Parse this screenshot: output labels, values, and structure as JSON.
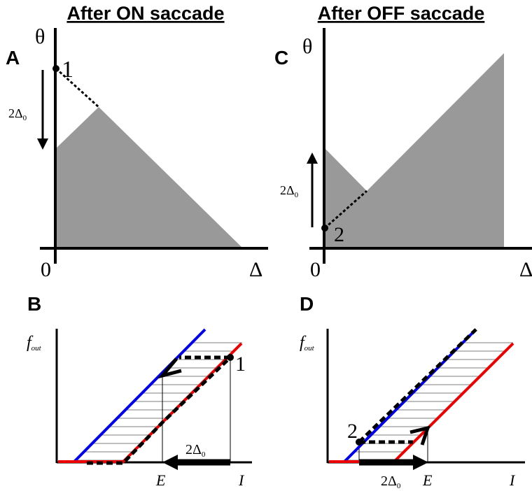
{
  "headers": {
    "left": "After ON saccade",
    "right": "After OFF saccade"
  },
  "panels": {
    "A": {
      "label": "A",
      "y_label": "θ",
      "x_label": "Δ",
      "origin_label": "0",
      "point_label": "1",
      "shift_base": "2Δ",
      "shift_sub": "0"
    },
    "B": {
      "label": "B",
      "y_label_base": "f",
      "y_label_sub": "out",
      "x_label": "I",
      "e_label": "E",
      "point_label": "1",
      "shift_base": "2Δ",
      "shift_sub": "0"
    },
    "C": {
      "label": "C",
      "y_label": "θ",
      "x_label": "Δ",
      "origin_label": "0",
      "point_label": "2",
      "shift_base": "2Δ",
      "shift_sub": "0"
    },
    "D": {
      "label": "D",
      "y_label_base": "f",
      "y_label_sub": "out",
      "x_label": "I",
      "e_label": "E",
      "point_label": "2",
      "shift_base": "2Δ",
      "shift_sub": "0"
    }
  },
  "colors": {
    "shade": "#999999",
    "blue_curve": "#0000ee",
    "red_curve": "#ee0000",
    "hatch": "#999999",
    "ink": "#000000"
  }
}
